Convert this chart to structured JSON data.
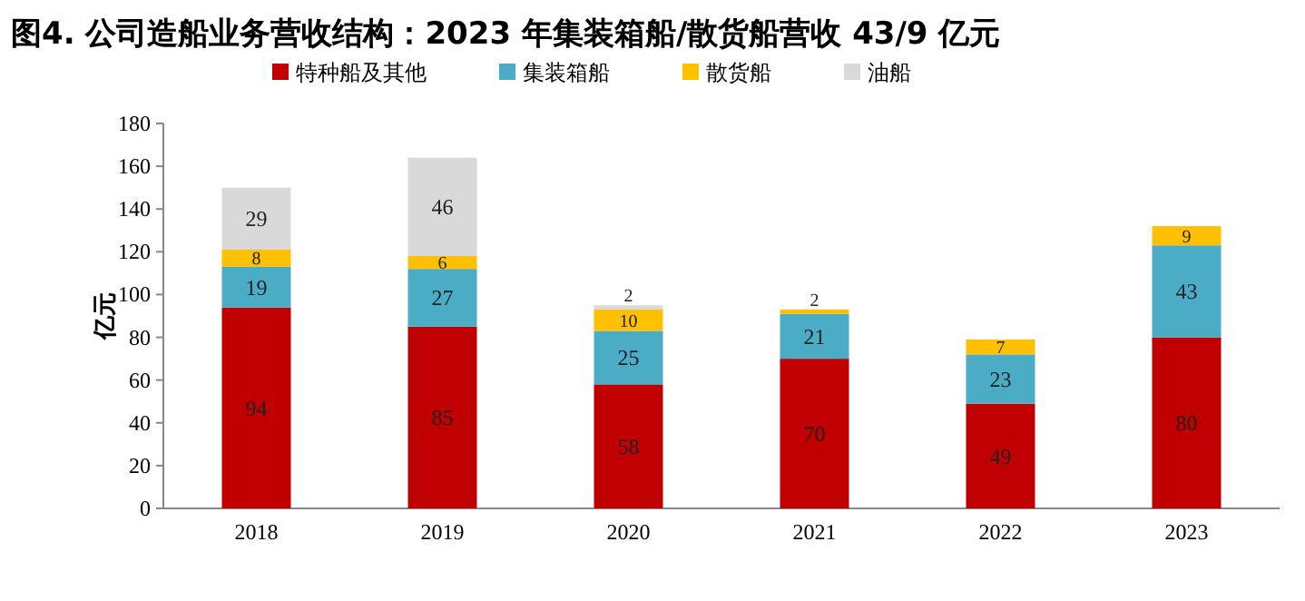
{
  "chart_data": {
    "type": "bar",
    "stacked": true,
    "title": "图4. 公司造船业务营收结构：2023 年集装箱船/散货船营收 43/9 亿元",
    "ylabel": "亿元",
    "categories": [
      "2018",
      "2019",
      "2020",
      "2021",
      "2022",
      "2023"
    ],
    "series": [
      {
        "name": "特种船及其他",
        "color": "#c00000",
        "values": [
          94,
          85,
          58,
          70,
          49,
          80
        ]
      },
      {
        "name": "集装箱船",
        "color": "#4bacc6",
        "values": [
          19,
          27,
          25,
          21,
          23,
          43
        ]
      },
      {
        "name": "散货船",
        "color": "#ffc000",
        "values": [
          8,
          6,
          10,
          2,
          7,
          9
        ]
      },
      {
        "name": "油船",
        "color": "#d9d9d9",
        "values": [
          29,
          46,
          2,
          null,
          null,
          null
        ]
      }
    ],
    "ylim": [
      0,
      180
    ],
    "yticks": [
      0,
      20,
      40,
      60,
      80,
      100,
      120,
      140,
      160,
      180
    ],
    "data_labels": true,
    "legend": "top",
    "grid": false
  }
}
